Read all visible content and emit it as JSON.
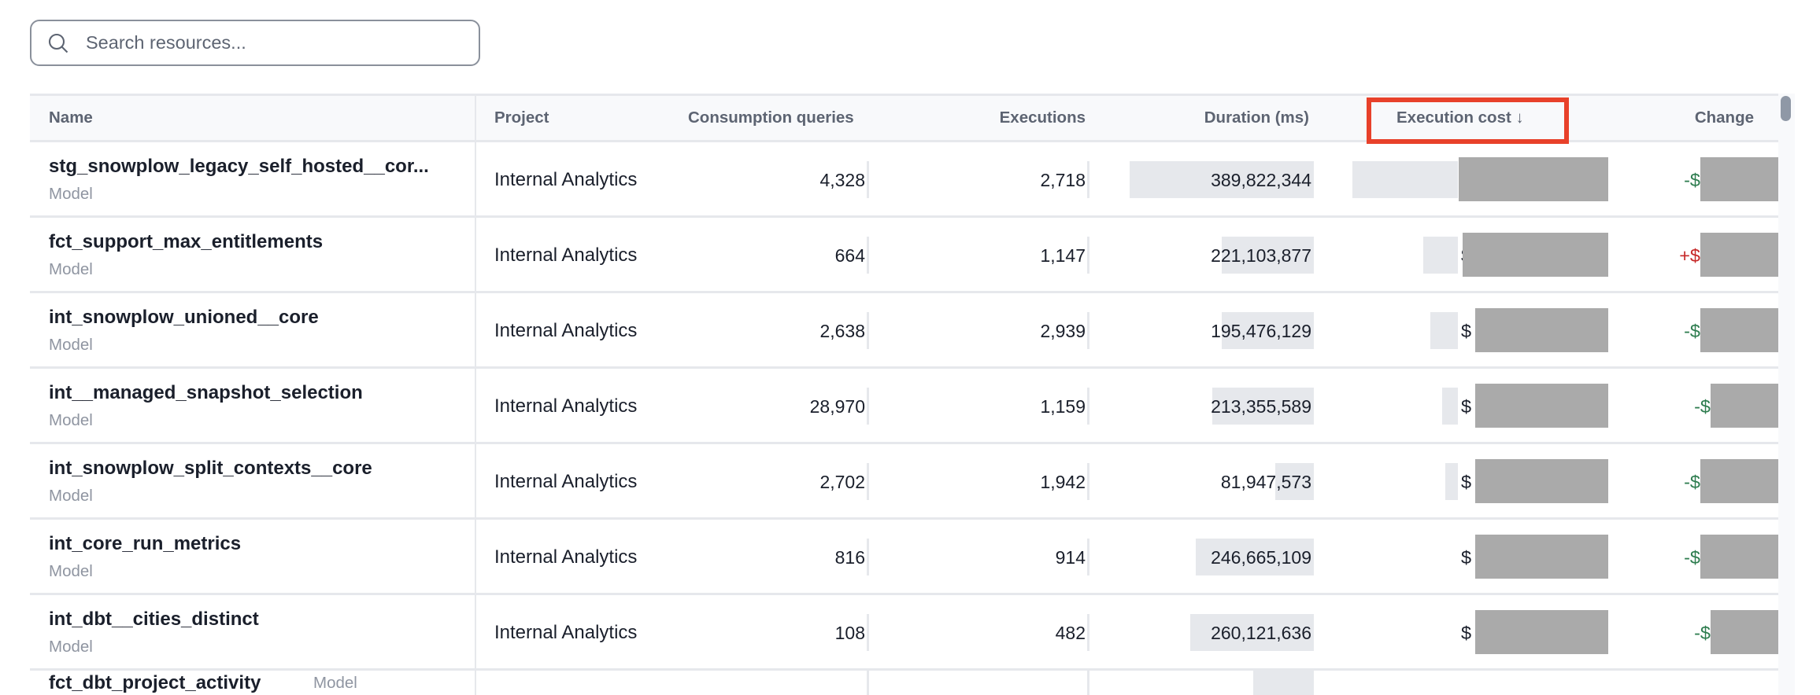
{
  "search": {
    "placeholder": "Search resources...",
    "icon": "search-icon"
  },
  "table": {
    "columns": [
      "Name",
      "Project",
      "Consumption queries",
      "Executions",
      "Duration (ms)",
      "Execution cost",
      "Change"
    ],
    "sort": {
      "column": "Execution cost",
      "direction": "descending",
      "indicator": "↓"
    },
    "highlight_color": "#e8412a",
    "positive_change_color": "#2e7d4f",
    "negative_change_color": "#c62828",
    "rows": [
      {
        "name": "stg_snowplow_legacy_self_hosted__cor...",
        "type": "Model",
        "project": "Internal Analytics",
        "consumption_queries": "4,328",
        "executions": "2,718",
        "duration": "389,822,344",
        "duration_fill": 1.0,
        "cost_prefix": "$",
        "cost_fill": 1.0,
        "change_prefix": "-$",
        "change_sign": "negative"
      },
      {
        "name": "fct_support_max_entitlements",
        "type": "Model",
        "project": "Internal Analytics",
        "consumption_queries": "664",
        "executions": "1,147",
        "duration": "221,103,877",
        "duration_fill": 0.5,
        "cost_prefix": "$",
        "cost_fill": 0.33,
        "change_prefix": "+$",
        "change_sign": "positive"
      },
      {
        "name": "int_snowplow_unioned__core",
        "type": "Model",
        "project": "Internal Analytics",
        "consumption_queries": "2,638",
        "executions": "2,939",
        "duration": "195,476,129",
        "duration_fill": 0.5,
        "cost_prefix": "$",
        "cost_fill": 0.26,
        "change_prefix": "-$",
        "change_sign": "negative"
      },
      {
        "name": "int__managed_snapshot_selection",
        "type": "Model",
        "project": "Internal Analytics",
        "consumption_queries": "28,970",
        "executions": "1,159",
        "duration": "213,355,589",
        "duration_fill": 0.55,
        "cost_prefix": "$",
        "cost_fill": 0.15,
        "change_prefix": "-$",
        "change_sign": "negative"
      },
      {
        "name": "int_snowplow_split_contexts__core",
        "type": "Model",
        "project": "Internal Analytics",
        "consumption_queries": "2,702",
        "executions": "1,942",
        "duration": "81,947,573",
        "duration_fill": 0.21,
        "cost_prefix": "$",
        "cost_fill": 0.12,
        "change_prefix": "-$",
        "change_sign": "negative"
      },
      {
        "name": "int_core_run_metrics",
        "type": "Model",
        "project": "Internal Analytics",
        "consumption_queries": "816",
        "executions": "914",
        "duration": "246,665,109",
        "duration_fill": 0.64,
        "cost_prefix": "$",
        "cost_fill": 0,
        "change_prefix": "-$",
        "change_sign": "negative"
      },
      {
        "name": "int_dbt__cities_distinct",
        "type": "Model",
        "project": "Internal Analytics",
        "consumption_queries": "108",
        "executions": "482",
        "duration": "260,121,636",
        "duration_fill": 0.67,
        "cost_prefix": "$",
        "cost_fill": 0,
        "change_prefix": "-$",
        "change_sign": "negative"
      },
      {
        "name": "fct_dbt_project_activity",
        "type": "Model",
        "project": "",
        "consumption_queries": "",
        "executions": "",
        "duration": "",
        "duration_fill": 0.33,
        "cost_prefix": "",
        "cost_fill": 0,
        "change_prefix": "",
        "change_sign": "negative"
      }
    ]
  }
}
